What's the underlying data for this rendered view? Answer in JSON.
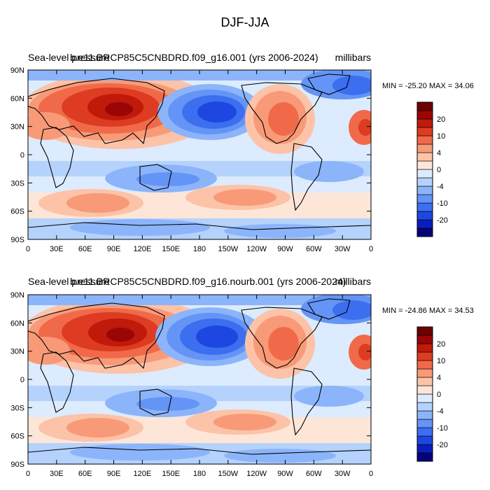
{
  "figure_title": "DJF-JJA",
  "colorbar": {
    "colors": [
      "#08007a",
      "#0a1ebd",
      "#1e46e0",
      "#3c6ef0",
      "#6494f5",
      "#8cb4fa",
      "#b4d2fc",
      "#dcebfd",
      "#fde6d7",
      "#fcc3a8",
      "#f89a78",
      "#f06a4a",
      "#dd3c22",
      "#bf1a0a",
      "#9a0606",
      "#6e0000"
    ],
    "labels": [
      "20",
      "10",
      "4",
      "0",
      "-4",
      "-10",
      "-20"
    ]
  },
  "axes": {
    "lat_ticks": [
      "90N",
      "60N",
      "30N",
      "0",
      "30S",
      "60S",
      "90S"
    ],
    "lon_ticks": [
      "0",
      "30E",
      "60E",
      "90E",
      "120E",
      "150E",
      "180",
      "150W",
      "120W",
      "90W",
      "60W",
      "30W",
      "0"
    ]
  },
  "chart_data": [
    {
      "type": "heatmap",
      "title": "Sea-level pressure",
      "subtitle": "b.e11.BRCP85C5CNBDRD.f09_g16.001 (yrs 2006-2024)",
      "units": "millibars",
      "min_max": "MIN = -25.20 MAX =  34.06",
      "xlim": [
        0,
        360
      ],
      "ylim": [
        -90,
        90
      ],
      "colorbar_levels": [
        -20,
        -15,
        -10,
        -8,
        -6,
        -4,
        -2,
        0,
        2,
        4,
        6,
        8,
        10,
        15,
        20
      ]
    },
    {
      "type": "heatmap",
      "title": "Sea-level pressure",
      "subtitle": "b.e11.BRCP85C5CNBDRD.f09_g16.nourb.001 (yrs 2006-2024)",
      "units": "millibars",
      "min_max": "MIN = -24.86 MAX =  34.53",
      "xlim": [
        0,
        360
      ],
      "ylim": [
        -90,
        90
      ],
      "colorbar_levels": [
        -20,
        -15,
        -10,
        -8,
        -6,
        -4,
        -2,
        0,
        2,
        4,
        6,
        8,
        10,
        15,
        20
      ]
    }
  ]
}
